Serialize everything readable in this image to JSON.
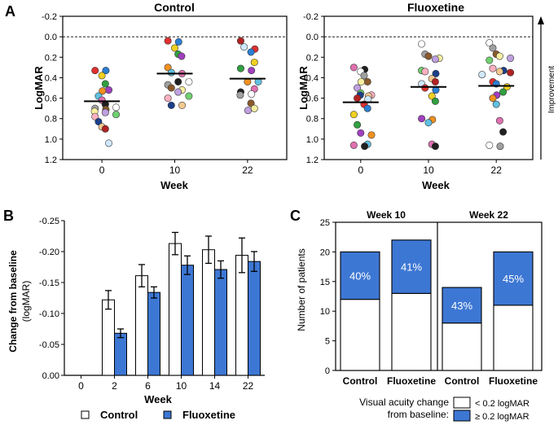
{
  "panel_letters": [
    "A",
    "B",
    "C"
  ],
  "chart_data": [
    {
      "panel": "A",
      "type": "scatter",
      "title": "Control",
      "xlabel": "Week",
      "ylabel": "LogMAR",
      "categories": [
        "0",
        "10",
        "22"
      ],
      "ylim": [
        1.2,
        -0.2
      ],
      "yticks": [
        "-0.2",
        "0.0",
        "0.2",
        "0.4",
        "0.6",
        "0.8",
        "1.0",
        "1.2"
      ],
      "reference_line": 0.0,
      "means": [
        0.63,
        0.36,
        0.41
      ],
      "points": [
        {
          "x": 0,
          "ys": [
            0.33,
            0.33,
            0.38,
            0.46,
            0.52,
            0.53,
            0.58,
            0.62,
            0.66,
            0.69,
            0.7,
            0.71,
            0.73,
            0.74,
            0.76,
            0.78,
            0.83,
            0.88,
            0.9,
            1.04
          ]
        },
        {
          "x": 1,
          "ys": [
            0.04,
            0.05,
            0.11,
            0.17,
            0.19,
            0.3,
            0.35,
            0.36,
            0.44,
            0.44,
            0.47,
            0.5,
            0.52,
            0.54,
            0.58,
            0.6,
            0.67,
            0.67
          ]
        },
        {
          "x": 2,
          "ys": [
            0.04,
            0.1,
            0.12,
            0.15,
            0.25,
            0.31,
            0.33,
            0.44,
            0.44,
            0.51,
            0.54,
            0.56,
            0.57,
            0.65,
            0.7,
            0.72
          ]
        }
      ]
    },
    {
      "panel": "A",
      "type": "scatter",
      "title": "Fluoxetine",
      "xlabel": "Week",
      "ylabel": "LogMAR",
      "categories": [
        "0",
        "10",
        "22"
      ],
      "ylim": [
        1.2,
        -0.2
      ],
      "yticks": [
        "-0.2",
        "0.0",
        "0.2",
        "0.4",
        "0.6",
        "0.8",
        "1.0",
        "1.2"
      ],
      "reference_line": 0.0,
      "means": [
        0.64,
        0.49,
        0.48
      ],
      "annotation": "Improvement",
      "points": [
        {
          "x": 0,
          "ys": [
            0.3,
            0.32,
            0.34,
            0.38,
            0.44,
            0.44,
            0.5,
            0.55,
            0.57,
            0.57,
            0.58,
            0.6,
            0.61,
            0.66,
            0.7,
            0.76,
            0.86,
            0.94,
            0.96,
            1.05,
            1.06,
            1.07
          ]
        },
        {
          "x": 1,
          "ys": [
            0.07,
            0.17,
            0.19,
            0.21,
            0.22,
            0.33,
            0.34,
            0.36,
            0.41,
            0.44,
            0.46,
            0.5,
            0.52,
            0.58,
            0.63,
            0.8,
            0.81,
            0.84,
            1.05,
            1.07
          ]
        },
        {
          "x": 2,
          "ys": [
            0.06,
            0.11,
            0.17,
            0.19,
            0.21,
            0.23,
            0.31,
            0.33,
            0.34,
            0.35,
            0.37,
            0.44,
            0.46,
            0.49,
            0.54,
            0.57,
            0.6,
            0.66,
            0.82,
            0.93,
            1.06,
            1.07
          ]
        }
      ]
    },
    {
      "panel": "B",
      "type": "bar",
      "title": "",
      "xlabel": "Week",
      "ylabel": "Change from baseline",
      "ylabel_unit": "(logMAR)",
      "categories": [
        "0",
        "2",
        "6",
        "10",
        "14",
        "22"
      ],
      "ylim": [
        0,
        -0.25
      ],
      "yticks": [
        "-0.25",
        "-0.20",
        "-0.15",
        "-0.10",
        "-0.05",
        "0.00"
      ],
      "series": [
        {
          "name": "Control",
          "color": "#ffffff",
          "values": [
            0,
            -0.122,
            -0.161,
            -0.213,
            -0.203,
            -0.194
          ],
          "errors": [
            0,
            0.015,
            0.018,
            0.018,
            0.022,
            0.028
          ]
        },
        {
          "name": "Fluoxetine",
          "color": "#3d77d4",
          "values": [
            0,
            -0.068,
            -0.134,
            -0.178,
            -0.171,
            -0.184
          ],
          "errors": [
            0,
            0.007,
            0.009,
            0.015,
            0.014,
            0.016
          ]
        }
      ],
      "legend": [
        "Control",
        "Fluoxetine"
      ]
    },
    {
      "panel": "C",
      "type": "bar",
      "stacked": true,
      "groups": [
        "Week 10",
        "Week 22"
      ],
      "categories": [
        "Control",
        "Fluoxetine",
        "Control",
        "Fluoxetine"
      ],
      "ylabel": "Number of patients",
      "ylim": [
        0,
        25
      ],
      "yticks": [
        "0",
        "5",
        "10",
        "15",
        "20",
        "25"
      ],
      "series": [
        {
          "name": "< 0.2 logMAR",
          "color": "#ffffff",
          "values": [
            12,
            13,
            8,
            11
          ]
        },
        {
          "name": "≥ 0.2 logMAR",
          "color": "#3d77d4",
          "values": [
            8,
            9,
            6,
            9
          ]
        }
      ],
      "percent_labels": [
        "40%",
        "41%",
        "43%",
        "45%"
      ],
      "legend_title": [
        "Visual acuity change",
        "from baseline:"
      ],
      "legend": [
        "< 0.2 logMAR",
        "≥ 0.2 logMAR"
      ]
    }
  ]
}
